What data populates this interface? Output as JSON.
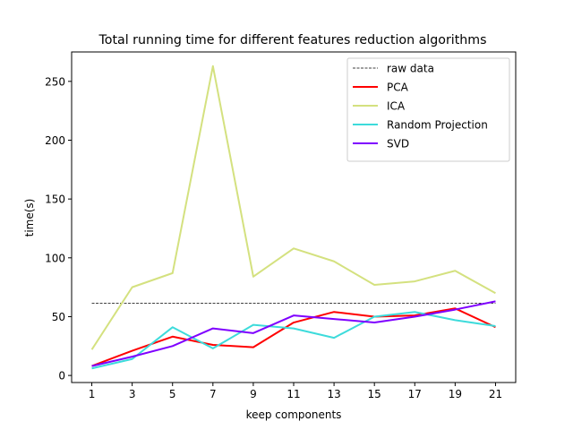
{
  "chart_data": {
    "type": "line",
    "title": "Total running time for different features reduction algorithms",
    "xlabel": "keep components",
    "ylabel": "time(s)",
    "x": [
      1,
      3,
      5,
      7,
      9,
      11,
      13,
      15,
      17,
      19,
      21
    ],
    "xlim": [
      0.0,
      22.0
    ],
    "ylim": [
      -6,
      275
    ],
    "xticks": [
      1,
      3,
      5,
      7,
      9,
      11,
      13,
      15,
      17,
      19,
      21
    ],
    "yticks": [
      0,
      50,
      100,
      150,
      200,
      250
    ],
    "grid": false,
    "legend_position": "top-right",
    "series": [
      {
        "name": "raw data",
        "style": "dashed",
        "color": "#000000",
        "values": [
          61.5,
          61.5,
          61.5,
          61.5,
          61.5,
          61.5,
          61.5,
          61.5,
          61.5,
          61.5,
          61.5
        ]
      },
      {
        "name": "PCA",
        "style": "solid",
        "color": "#ff0000",
        "values": [
          8,
          21,
          33,
          26,
          24,
          45,
          54,
          50,
          51,
          57,
          41
        ]
      },
      {
        "name": "ICA",
        "style": "solid",
        "color": "#d4e17f",
        "values": [
          22,
          75,
          87,
          263,
          84,
          108,
          97,
          77,
          80,
          89,
          70
        ]
      },
      {
        "name": "Random Projection",
        "style": "solid",
        "color": "#3ddbdb",
        "values": [
          6,
          14,
          41,
          23,
          43,
          40,
          32,
          50,
          54,
          47,
          42
        ]
      },
      {
        "name": "SVD",
        "style": "solid",
        "color": "#7f00ff",
        "values": [
          8,
          16,
          25,
          40,
          36,
          51,
          48,
          45,
          50,
          56,
          63
        ]
      }
    ]
  }
}
